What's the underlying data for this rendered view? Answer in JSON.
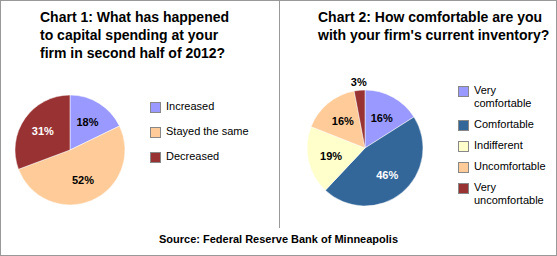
{
  "chart_data": [
    {
      "type": "pie",
      "title": "Chart 1: What has happened to capital spending at your firm in second half of 2012?",
      "categories": [
        "Increased",
        "Stayed the same",
        "Decreased"
      ],
      "values": [
        18,
        52,
        31
      ],
      "value_labels": [
        "18%",
        "52%",
        "31%"
      ],
      "colors": [
        "#9999ff",
        "#ffcc99",
        "#993333"
      ],
      "data_labels": true,
      "legend": "right"
    },
    {
      "type": "pie",
      "title": "Chart 2: How comfortable are you with your firm's current inventory?",
      "categories": [
        "Very comfortable",
        "Comfortable",
        "Indifferent",
        "Uncomfortable",
        "Very uncomfortable"
      ],
      "values": [
        16,
        46,
        19,
        16,
        3
      ],
      "value_labels": [
        "16%",
        "46%",
        "19%",
        "16%",
        "3%"
      ],
      "colors": [
        "#9999ff",
        "#336699",
        "#ffffcc",
        "#ffcc99",
        "#993333"
      ],
      "data_labels": true,
      "legend": "right"
    }
  ],
  "source": "Source: Federal Reserve Bank of Minneapolis"
}
